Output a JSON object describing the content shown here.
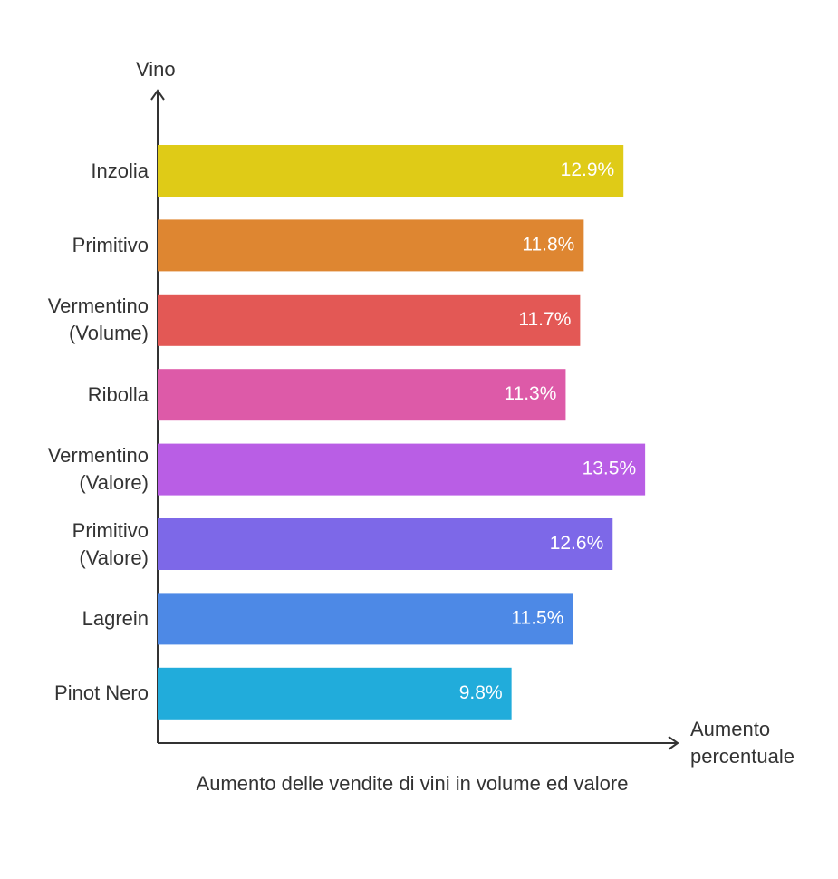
{
  "chart_data": {
    "type": "bar",
    "orientation": "horizontal",
    "title": "Aumento delle vendite di vini in volume ed valore",
    "y_label": "Vino",
    "x_label": "Aumento percentuale",
    "categories": [
      "Inzolia",
      "Primitivo",
      "Vermentino (Volume)",
      "Ribolla",
      "Vermentino (Valore)",
      "Primitivo (Valore)",
      "Lagrein",
      "Pinot Nero"
    ],
    "values": [
      12.9,
      11.8,
      11.7,
      11.3,
      13.5,
      12.6,
      11.5,
      9.8
    ],
    "value_labels": [
      "12.9%",
      "11.8%",
      "11.7%",
      "11.3%",
      "13.5%",
      "12.6%",
      "11.5%",
      "9.8%"
    ],
    "colors": [
      "#dfcb17",
      "#de8631",
      "#e35855",
      "#dd5aa8",
      "#b95ee5",
      "#7d68e8",
      "#4d89e6",
      "#21acdb"
    ],
    "xlim": [
      0,
      14.4
    ]
  }
}
